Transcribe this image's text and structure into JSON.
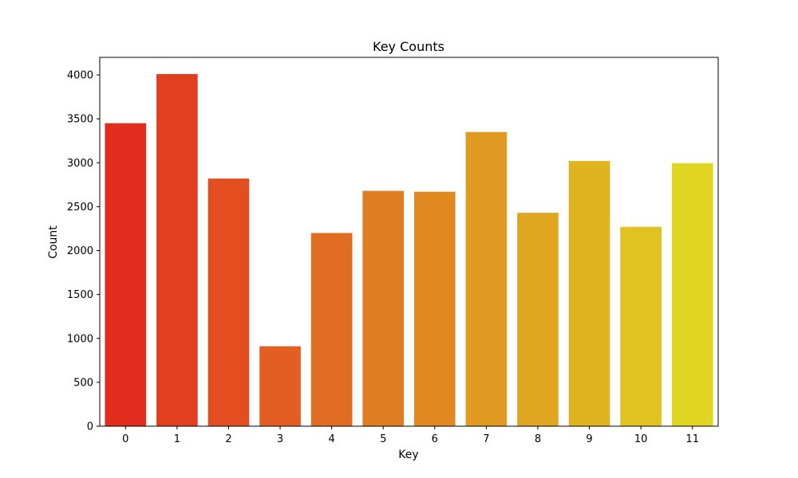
{
  "chart_data": {
    "type": "bar",
    "title": "Key Counts",
    "xlabel": "Key",
    "ylabel": "Count",
    "categories": [
      "0",
      "1",
      "2",
      "3",
      "4",
      "5",
      "6",
      "7",
      "8",
      "9",
      "10",
      "11"
    ],
    "values": [
      3450,
      4010,
      2820,
      910,
      2200,
      2680,
      2670,
      3350,
      2430,
      3020,
      2270,
      2995
    ],
    "ylim": [
      0,
      4200
    ],
    "yticks": [
      0,
      500,
      1000,
      1500,
      2000,
      2500,
      3000,
      3500,
      4000
    ],
    "grid": false,
    "colors": [
      "#e22c1e",
      "#e23f1f",
      "#e24e1f",
      "#e35e20",
      "#e06d21",
      "#e07c21",
      "#e08921",
      "#e19a21",
      "#e0a621",
      "#e0b421",
      "#e0c221",
      "#e0d520"
    ]
  }
}
